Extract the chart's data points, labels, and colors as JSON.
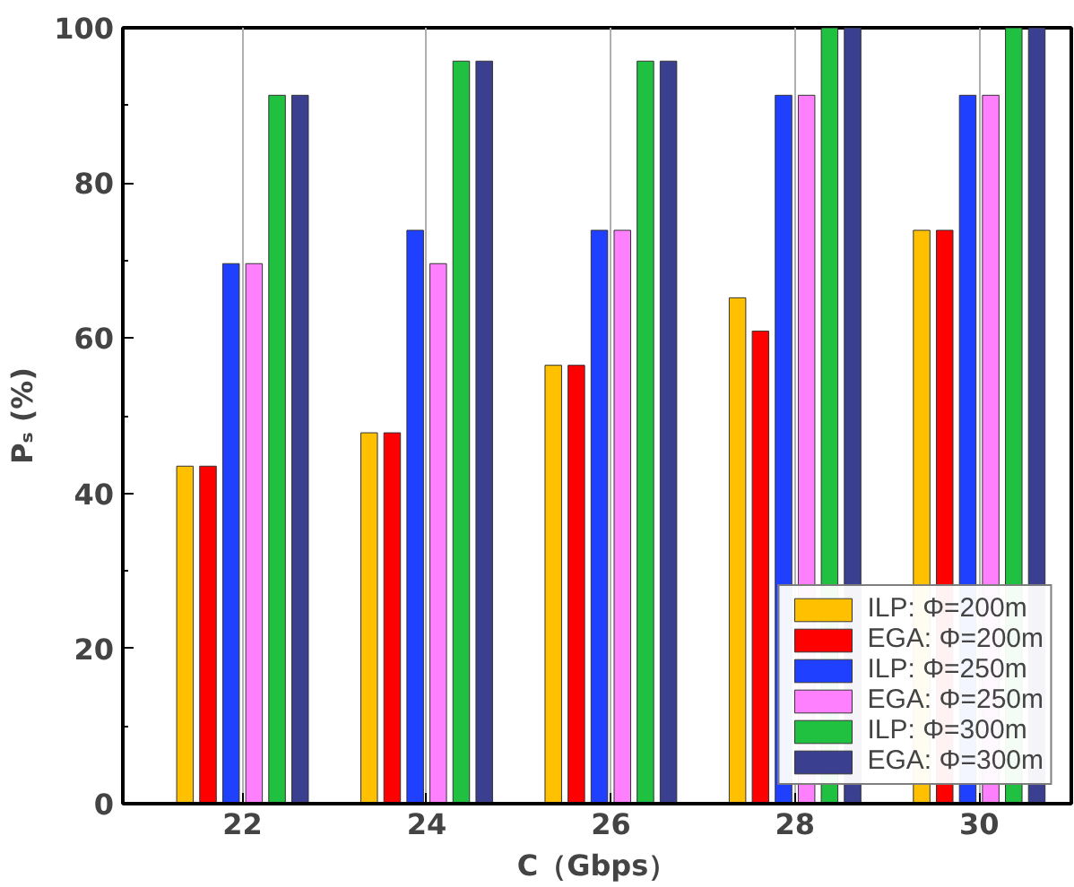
{
  "chart_data": {
    "type": "bar",
    "xlabel": "C（Gbps）",
    "ylabel": "Pₛ (%)",
    "categories": [
      "22",
      "24",
      "26",
      "28",
      "30"
    ],
    "series": [
      {
        "name": "ILP: Φ=200m",
        "color": "#ffc000",
        "values": [
          43.5,
          47.8,
          56.5,
          65.2,
          73.9
        ]
      },
      {
        "name": "EGA: Φ=200m",
        "color": "#ff0000",
        "values": [
          43.5,
          47.8,
          56.5,
          60.9,
          73.9
        ]
      },
      {
        "name": "ILP: Φ=250m",
        "color": "#2040ff",
        "values": [
          69.6,
          73.9,
          73.9,
          91.3,
          91.3
        ]
      },
      {
        "name": "EGA: Φ=250m",
        "color": "#ff80ff",
        "values": [
          69.6,
          69.6,
          73.9,
          91.3,
          91.3
        ]
      },
      {
        "name": "ILP: Φ=300m",
        "color": "#20c040",
        "values": [
          91.3,
          95.7,
          95.7,
          100,
          100
        ]
      },
      {
        "name": "EGA: Φ=300m",
        "color": "#3a3f8f",
        "values": [
          91.3,
          95.7,
          95.7,
          100,
          100
        ]
      }
    ],
    "ylim": [
      0,
      100
    ],
    "yticks": [
      0,
      20,
      40,
      60,
      80,
      100
    ],
    "grid": "x",
    "legend": "bottom right"
  }
}
